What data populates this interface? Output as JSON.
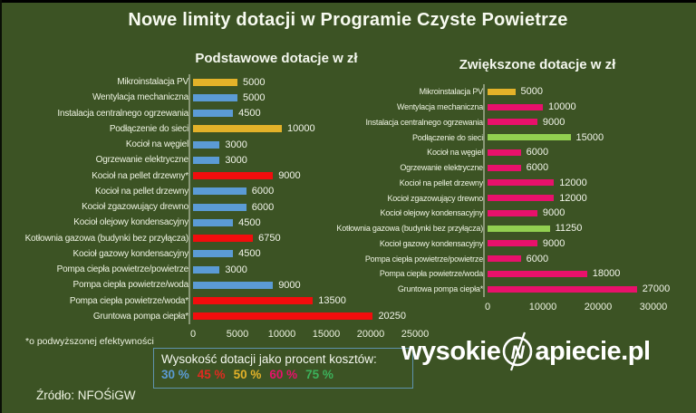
{
  "page": {
    "title": "Nowe limity dotacji w Programie Czyste Powietrze",
    "footnote": "*o podwyższonej efektywności",
    "source": "Źródło: NFOŚiGW",
    "watermark": {
      "prefix": "wysokie",
      "letter": "N",
      "suffix": "apiecie.pl"
    }
  },
  "legend": {
    "title": "Wysokość dotacji jako procent kosztów:",
    "items": [
      {
        "label": "30 %",
        "color": "#5b9bd5"
      },
      {
        "label": "45 %",
        "color": "#e02b20"
      },
      {
        "label": "50 %",
        "color": "#e3b229"
      },
      {
        "label": "60 %",
        "color": "#e8116b"
      },
      {
        "label": "75 %",
        "color": "#3cb25b"
      }
    ]
  },
  "chart_data": [
    {
      "type": "bar",
      "orientation": "horizontal",
      "title": "Podstawowe dotacje w zł",
      "xlabel": "",
      "ylabel": "",
      "xlim": [
        0,
        25000
      ],
      "xticks": [
        0,
        5000,
        10000,
        15000,
        20000,
        25000
      ],
      "grid": false,
      "bars": [
        {
          "label": "Mikroinstalacja PV",
          "value": 5000,
          "color": "#e3b229"
        },
        {
          "label": "Wentylacja mechaniczna",
          "value": 5000,
          "color": "#5b9bd5"
        },
        {
          "label": "Instalacja centralnego ogrzewania",
          "value": 4500,
          "color": "#5b9bd5"
        },
        {
          "label": "Podłączenie do sieci",
          "value": 10000,
          "color": "#e3b229"
        },
        {
          "label": "Kocioł na węgiel",
          "value": 3000,
          "color": "#5b9bd5"
        },
        {
          "label": "Ogrzewanie elektryczne",
          "value": 3000,
          "color": "#5b9bd5"
        },
        {
          "label": "Kocioł na pellet drzewny*",
          "value": 9000,
          "color": "#f20d0d"
        },
        {
          "label": "Kocioł na pellet drzewny",
          "value": 6000,
          "color": "#5b9bd5"
        },
        {
          "label": "Kocioł zgazowujący drewno",
          "value": 6000,
          "color": "#5b9bd5"
        },
        {
          "label": "Kocioł olejowy kondensacyjny",
          "value": 4500,
          "color": "#5b9bd5"
        },
        {
          "label": "Kotłownia gazowa (budynki bez przyłącza)",
          "value": 6750,
          "color": "#f20d0d"
        },
        {
          "label": "Kocioł gazowy kondensacyjny",
          "value": 4500,
          "color": "#5b9bd5"
        },
        {
          "label": "Pompa ciepła powietrze/powietrze",
          "value": 3000,
          "color": "#5b9bd5"
        },
        {
          "label": "Pompa ciepła powietrze/woda",
          "value": 9000,
          "color": "#5b9bd5"
        },
        {
          "label": "Pompa ciepła powietrze/woda*",
          "value": 13500,
          "color": "#f20d0d"
        },
        {
          "label": "Gruntowa pompa ciepła*",
          "value": 20250,
          "color": "#f20d0d"
        }
      ]
    },
    {
      "type": "bar",
      "orientation": "horizontal",
      "title": "Zwiększone dotacje w zł",
      "xlabel": "",
      "ylabel": "",
      "xlim": [
        0,
        30000
      ],
      "xticks": [
        0,
        10000,
        20000,
        30000
      ],
      "grid": false,
      "bars": [
        {
          "label": "Mikroinstalacja PV",
          "value": 5000,
          "color": "#e3b229"
        },
        {
          "label": "Wentylacja mechaniczna",
          "value": 10000,
          "color": "#e8116b"
        },
        {
          "label": "Instalacja centralnego ogrzewania",
          "value": 9000,
          "color": "#e8116b"
        },
        {
          "label": "Podłączenie do sieci",
          "value": 15000,
          "color": "#92d050"
        },
        {
          "label": "Kocioł na węgiel",
          "value": 6000,
          "color": "#e8116b"
        },
        {
          "label": "Ogrzewanie elektryczne",
          "value": 6000,
          "color": "#e8116b"
        },
        {
          "label": "Kocioł na pellet drzewny",
          "value": 12000,
          "color": "#e8116b"
        },
        {
          "label": "Kocioł zgazowujący drewno",
          "value": 12000,
          "color": "#e8116b"
        },
        {
          "label": "Kocioł olejowy kondensacyjny",
          "value": 9000,
          "color": "#e8116b"
        },
        {
          "label": "Kotłownia gazowa (budynki bez przyłącza)",
          "value": 11250,
          "color": "#92d050"
        },
        {
          "label": "Kocioł gazowy kondensacyjny",
          "value": 9000,
          "color": "#e8116b"
        },
        {
          "label": "Pompa ciepła powietrze/powietrze",
          "value": 6000,
          "color": "#e8116b"
        },
        {
          "label": "Pompa ciepła powietrze/woda",
          "value": 18000,
          "color": "#e8116b"
        },
        {
          "label": "Gruntowa pompa ciepła*",
          "value": 27000,
          "color": "#e8116b"
        }
      ]
    }
  ]
}
